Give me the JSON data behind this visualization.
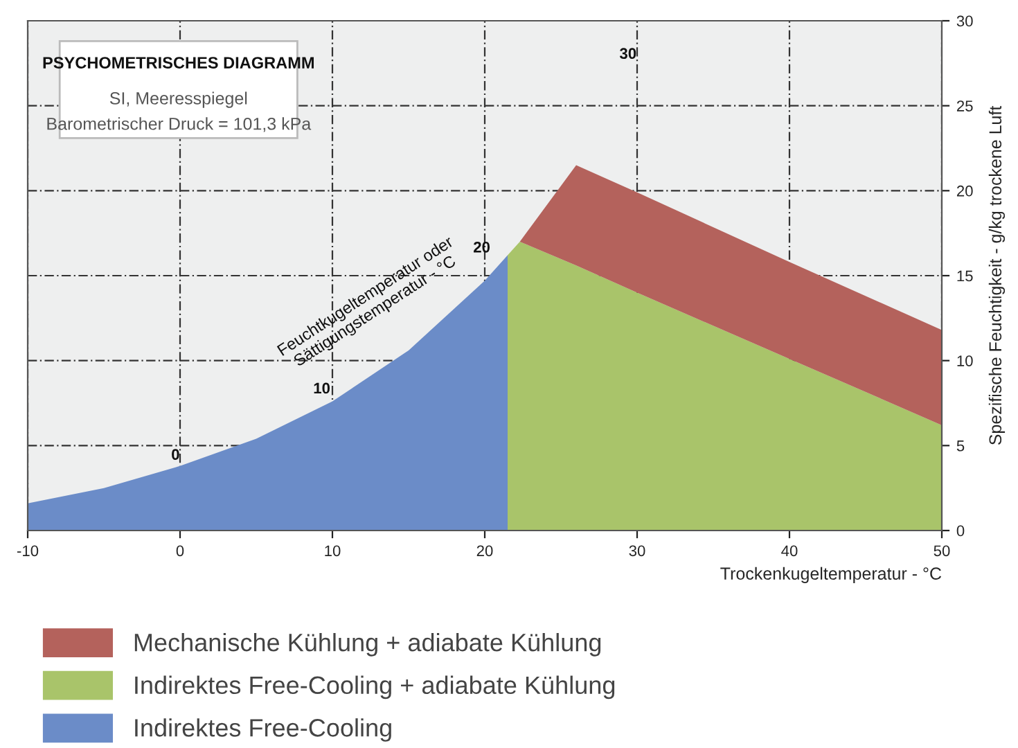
{
  "chart_data": {
    "type": "area",
    "stacked": true,
    "title": "PSYCHOMETRISCHES DIAGRAMM",
    "subtitle": "SI, Meeresspiegel",
    "xlabel": "Trockenkugeltemperatur - °C",
    "ylabel": "Spezifische Feuchtigkeit - g/kg trockene Luft",
    "x": [
      -10,
      -5,
      0,
      5,
      10,
      15,
      20,
      21.5,
      21.5,
      22.3,
      26,
      30,
      40,
      50
    ],
    "series": [
      {
        "name": "Indirektes Free-Cooling",
        "color": "#6b8cc8",
        "values": [
          1.6,
          2.5,
          3.8,
          5.4,
          7.6,
          10.6,
          14.7,
          16.2,
          0,
          0,
          0,
          0,
          0,
          0
        ]
      },
      {
        "name": "Indirektes Free-Cooling + adiabate Kühlung",
        "color": "#a9c46a",
        "values": [
          0,
          0,
          0,
          0,
          0,
          0,
          0,
          0,
          16.2,
          17.0,
          15.6,
          14.0,
          10.1,
          6.2
        ]
      },
      {
        "name": "Mechanische Kühlung + adiabate Kühlung",
        "color": "#b4625c",
        "values": [
          0,
          0,
          0,
          0,
          0,
          0,
          0,
          0,
          0,
          0,
          5.9,
          5.9,
          5.7,
          5.6
        ]
      }
    ],
    "xlim": [
      -10,
      50
    ],
    "xticks": [
      -10,
      0,
      10,
      20,
      30,
      40,
      50
    ],
    "ylim": [
      0,
      30
    ],
    "yticks": [
      0,
      5,
      10,
      15,
      20,
      25,
      30
    ],
    "grid": true,
    "legend": "bottom",
    "annotations": [
      "Barometrischer Druck = 101,3 kPa",
      "0",
      "10",
      "20",
      "30",
      "Feuchtkugeltemperatur oder\nSättigungstemperatur - °C"
    ]
  }
}
